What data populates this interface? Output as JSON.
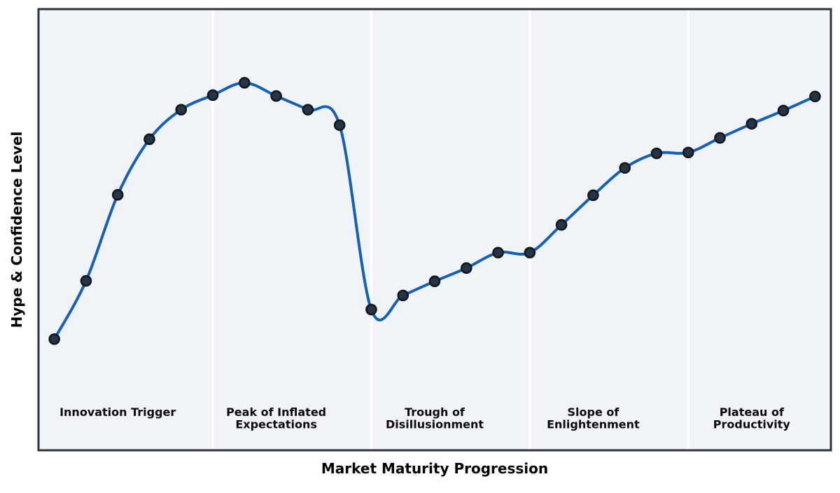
{
  "chart_data": {
    "type": "line",
    "title": "",
    "xlabel": "Market Maturity Progression",
    "ylabel": "Hype & Confidence Level",
    "x": [
      0,
      1,
      2,
      3,
      4,
      5,
      6,
      7,
      8,
      9,
      10,
      11,
      12,
      13,
      14,
      15,
      16,
      17,
      18,
      19,
      20,
      21,
      22,
      23,
      24
    ],
    "values": [
      25.2,
      38.4,
      57.9,
      70.5,
      77.2,
      80.5,
      83.3,
      80.3,
      77.2,
      73.7,
      31.9,
      35.1,
      38.3,
      41.3,
      44.8,
      44.8,
      51.1,
      57.8,
      64.0,
      67.3,
      67.5,
      70.8,
      74.0,
      77.0,
      80.2
    ],
    "xlim": [
      -0.5,
      24.5
    ],
    "ylim": [
      0,
      100
    ],
    "curve_style": "smooth-spline",
    "markers": true,
    "grid": false,
    "legend": "none",
    "axis_ticks": "none",
    "phases": [
      {
        "label": "Innovation Trigger",
        "lines": [
          "Innovation Trigger"
        ],
        "start_index": 0,
        "end_index": 4
      },
      {
        "label": "Peak of Inflated Expectations",
        "lines": [
          "Peak of Inflated",
          "Expectations"
        ],
        "start_index": 5,
        "end_index": 9
      },
      {
        "label": "Trough of Disillusionment",
        "lines": [
          "Trough of",
          "Disillusionment"
        ],
        "start_index": 10,
        "end_index": 14
      },
      {
        "label": "Slope of Enlightenment",
        "lines": [
          "Slope of",
          "Enlightenment"
        ],
        "start_index": 15,
        "end_index": 19
      },
      {
        "label": "Plateau of Productivity",
        "lines": [
          "Plateau of",
          "Productivity"
        ],
        "start_index": 20,
        "end_index": 24
      }
    ],
    "divider_indices": [
      5,
      10,
      15,
      20
    ]
  },
  "colors": {
    "page_background": "#ffffff",
    "plot_background": "#f0f4f8",
    "plot_border": "#303338",
    "phase_divider": "#ffffff",
    "curve": "#1661b5",
    "marker_fill": "#273445",
    "marker_edge": "#101820",
    "text": "#000000"
  }
}
